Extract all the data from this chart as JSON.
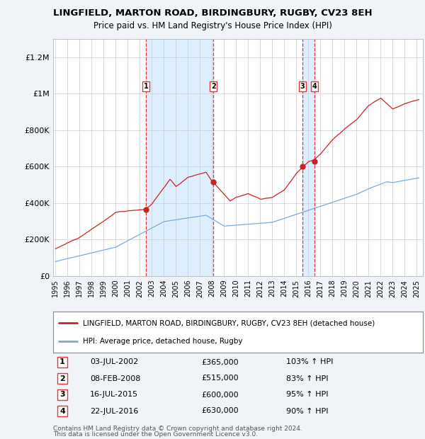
{
  "title": "LINGFIELD, MARTON ROAD, BIRDINGBURY, RUGBY, CV23 8EH",
  "subtitle": "Price paid vs. HM Land Registry's House Price Index (HPI)",
  "footer1": "Contains HM Land Registry data © Crown copyright and database right 2024.",
  "footer2": "This data is licensed under the Open Government Licence v3.0.",
  "legend_red": "LINGFIELD, MARTON ROAD, BIRDINGBURY, RUGBY, CV23 8EH (detached house)",
  "legend_blue": "HPI: Average price, detached house, Rugby",
  "transactions": [
    {
      "num": 1,
      "date": "03-JUL-2002",
      "price": 365000,
      "pct": "103%",
      "dir": "↑",
      "year": 2002.5
    },
    {
      "num": 2,
      "date": "08-FEB-2008",
      "price": 515000,
      "pct": "83%",
      "dir": "↑",
      "year": 2008.1
    },
    {
      "num": 3,
      "date": "16-JUL-2015",
      "price": 600000,
      "pct": "95%",
      "dir": "↑",
      "year": 2015.5
    },
    {
      "num": 4,
      "date": "22-JUL-2016",
      "price": 630000,
      "pct": "90%",
      "dir": "↑",
      "year": 2016.5
    }
  ],
  "ylim": [
    0,
    1300000
  ],
  "xlim": [
    1994.8,
    2025.5
  ],
  "yticks": [
    0,
    200000,
    400000,
    600000,
    800000,
    1000000,
    1200000
  ],
  "ytick_labels": [
    "£0",
    "£200K",
    "£400K",
    "£600K",
    "£800K",
    "£1M",
    "£1.2M"
  ],
  "xticks": [
    1995,
    1996,
    1997,
    1998,
    1999,
    2000,
    2001,
    2002,
    2003,
    2004,
    2005,
    2006,
    2007,
    2008,
    2009,
    2010,
    2011,
    2012,
    2013,
    2014,
    2015,
    2016,
    2017,
    2018,
    2019,
    2020,
    2021,
    2022,
    2023,
    2024,
    2025
  ],
  "background_color": "#f0f4f8",
  "plot_bg_color": "#ffffff",
  "red_color": "#cc2222",
  "blue_color": "#7aaadd",
  "vline_color": "#ee3333",
  "shade_color": "#ddeeff",
  "grid_color": "#cccccc"
}
